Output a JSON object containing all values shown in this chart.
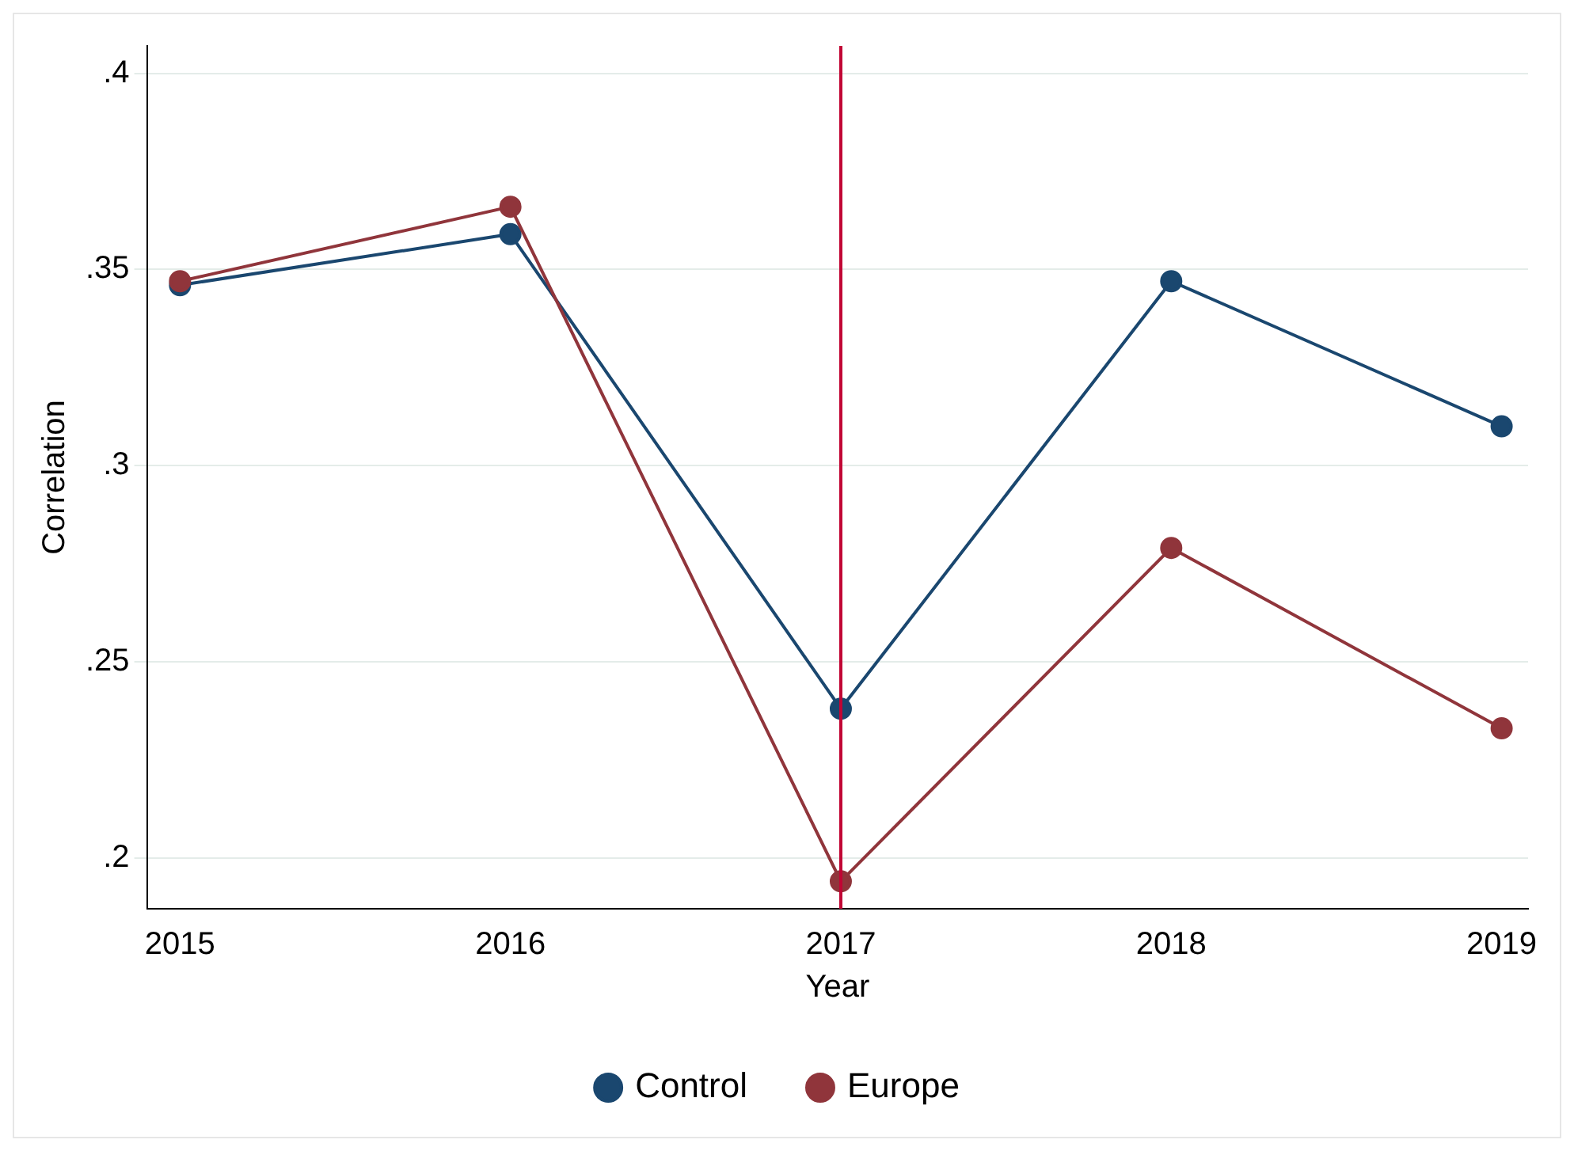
{
  "chart_data": {
    "type": "line",
    "xlabel": "Year",
    "ylabel": "Correlation",
    "x": [
      2015,
      2016,
      2017,
      2018,
      2019
    ],
    "series": [
      {
        "name": "Control",
        "color": "#1a476f",
        "values": [
          0.346,
          0.359,
          0.238,
          0.347,
          0.31
        ]
      },
      {
        "name": "Europe",
        "color": "#90353b",
        "values": [
          0.347,
          0.366,
          0.194,
          0.279,
          0.233
        ]
      }
    ],
    "xlim": [
      2014.9,
      2019.08
    ],
    "xticks": [
      2015,
      2016,
      2017,
      2018,
      2019
    ],
    "ylim": [
      0.187,
      0.407
    ],
    "yticks": [
      {
        "value": 0.2,
        "label": ".2"
      },
      {
        "value": 0.25,
        "label": ".25"
      },
      {
        "value": 0.3,
        "label": ".3"
      },
      {
        "value": 0.35,
        "label": ".35"
      },
      {
        "value": 0.4,
        "label": ".4"
      }
    ],
    "ref_lines": [
      {
        "axis": "x",
        "value": 2017,
        "color": "#c10534"
      }
    ],
    "grid": "y",
    "legend": "bottom",
    "marker": "circle",
    "line_style": "solid"
  }
}
